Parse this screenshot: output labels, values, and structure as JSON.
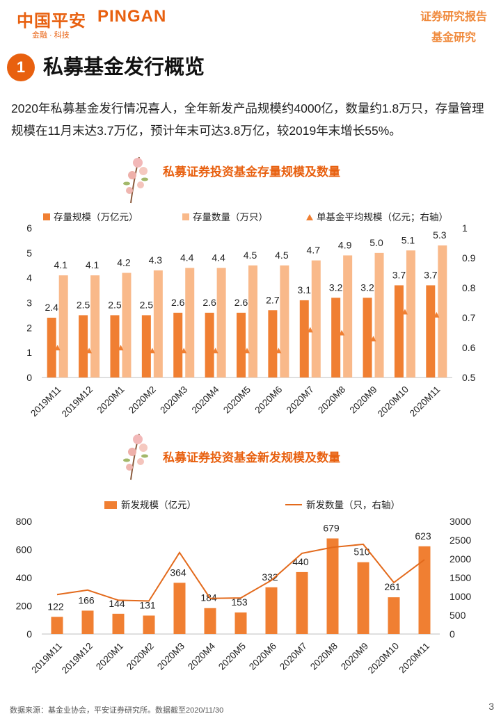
{
  "header": {
    "logo_cn": "中国平安",
    "logo_en": "PINGAN",
    "logo_sub": "金融 · 科技",
    "report_type": "证券研究报告",
    "report_sub": "基金研究"
  },
  "section": {
    "number": "1",
    "title": "私募基金发行概览"
  },
  "intro": "2020年私募基金发行情况喜人，全年新发产品规模约4000亿，数量约1.8万只，存量管理规模在11月末达3.7万亿，预计年末可达3.8万亿，较2019年末增长55%。",
  "colors": {
    "accent": "#e8600f",
    "bar_dark": "#f07f32",
    "bar_light": "#f9b98a",
    "line": "#e36a1c"
  },
  "chart_data": [
    {
      "type": "bar",
      "title": "私募证券投资基金存量规模及数量",
      "categories": [
        "2019M11",
        "2019M12",
        "2020M1",
        "2020M2",
        "2020M3",
        "2020M4",
        "2020M5",
        "2020M6",
        "2020M7",
        "2020M8",
        "2020M9",
        "2020M10",
        "2020M11"
      ],
      "series": [
        {
          "name": "存量规模（万亿元）",
          "type": "bar",
          "axis": "left",
          "values": [
            2.4,
            2.5,
            2.5,
            2.5,
            2.6,
            2.6,
            2.6,
            2.7,
            3.1,
            3.2,
            3.2,
            3.7,
            3.7
          ],
          "labels": [
            "2.4",
            "2.5",
            "2.5",
            "2.5",
            "2.6",
            "2.6",
            "2.6",
            "2.7",
            "3.1",
            "3.2",
            "3.2",
            "3.7",
            "3.7"
          ]
        },
        {
          "name": "存量数量（万只）",
          "type": "bar",
          "axis": "left",
          "values": [
            4.1,
            4.1,
            4.2,
            4.3,
            4.4,
            4.4,
            4.5,
            4.5,
            4.7,
            4.9,
            5.0,
            5.1,
            5.3
          ],
          "labels": [
            "4.1",
            "4.1",
            "4.2",
            "4.3",
            "4.4",
            "4.4",
            "4.5",
            "4.5",
            "4.7",
            "4.9",
            "5.0",
            "5.1",
            "5.3"
          ]
        },
        {
          "name": "单基金平均规模（亿元；右轴）",
          "type": "scatter",
          "axis": "right",
          "values": [
            0.6,
            0.59,
            0.6,
            0.59,
            0.59,
            0.59,
            0.59,
            0.59,
            0.66,
            0.65,
            0.63,
            0.72,
            0.71
          ]
        }
      ],
      "ylim": [
        0,
        6
      ],
      "yticks": [
        "0",
        "1",
        "2",
        "3",
        "4",
        "5",
        "6"
      ],
      "y2lim": [
        0.5,
        1
      ],
      "y2ticks": [
        "0.5",
        "0.6",
        "0.7",
        "0.8",
        "0.9",
        "1"
      ],
      "legend": "top"
    },
    {
      "type": "bar",
      "title": "私募证券投资基金新发规模及数量",
      "categories": [
        "2019M11",
        "2019M12",
        "2020M1",
        "2020M2",
        "2020M3",
        "2020M4",
        "2020M5",
        "2020M6",
        "2020M7",
        "2020M8",
        "2020M9",
        "2020M10",
        "2020M11"
      ],
      "series": [
        {
          "name": "新发规模（亿元）",
          "type": "bar",
          "axis": "left",
          "values": [
            122,
            166,
            144,
            131,
            364,
            184,
            153,
            332,
            440,
            679,
            510,
            261,
            623
          ],
          "labels": [
            "122",
            "166",
            "144",
            "131",
            "364",
            "184",
            "153",
            "332",
            "440",
            "679",
            "510",
            "261",
            "623"
          ]
        },
        {
          "name": "新发数量（只，右轴）",
          "type": "line",
          "axis": "right",
          "values": [
            1050,
            1170,
            900,
            880,
            2170,
            950,
            960,
            1430,
            2150,
            2310,
            2390,
            1370,
            1980
          ]
        }
      ],
      "ylim": [
        0,
        800
      ],
      "yticks": [
        "0",
        "200",
        "400",
        "600",
        "800"
      ],
      "y2lim": [
        0,
        3000
      ],
      "y2ticks": [
        "0",
        "500",
        "1000",
        "1500",
        "2000",
        "2500",
        "3000"
      ],
      "legend": "top"
    }
  ],
  "footer": {
    "source": "数据来源：基金业协会，平安证券研究所。数据截至2020/11/30",
    "page": "3"
  }
}
